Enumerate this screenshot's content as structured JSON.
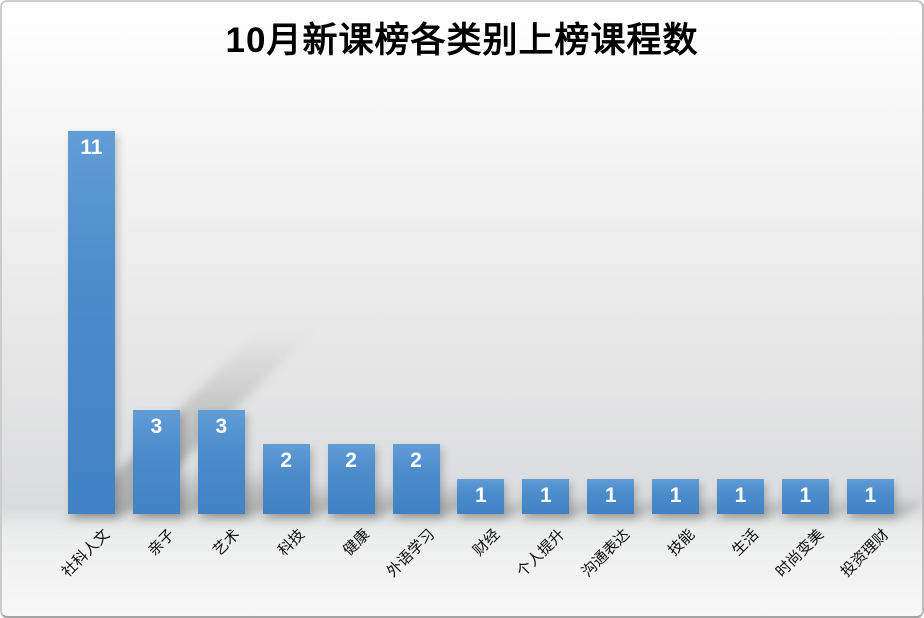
{
  "chart_data": {
    "type": "bar",
    "title": "10月新课榜各类别上榜课程数",
    "categories": [
      "社科人文",
      "亲子",
      "艺术",
      "科技",
      "健康",
      "外语学习",
      "财经",
      "个人提升",
      "沟通表达",
      "技能",
      "生活",
      "时尚变美",
      "投资理财"
    ],
    "values": [
      11,
      3,
      3,
      2,
      2,
      2,
      1,
      1,
      1,
      1,
      1,
      1,
      1
    ],
    "xlabel": "",
    "ylabel": "",
    "ylim": [
      0,
      11
    ],
    "grid": false,
    "axis_visible": false,
    "legend": "none",
    "value_labels_position": "inside-top",
    "value_label_color": "#ffffff",
    "bar_color_top": "#619dd6",
    "bar_color_bottom": "#3f82c5",
    "title_color": "#000000",
    "category_label_color": "#0d0d0d",
    "background_top": "#ffffff",
    "background_bottom": "#dadbdc"
  }
}
